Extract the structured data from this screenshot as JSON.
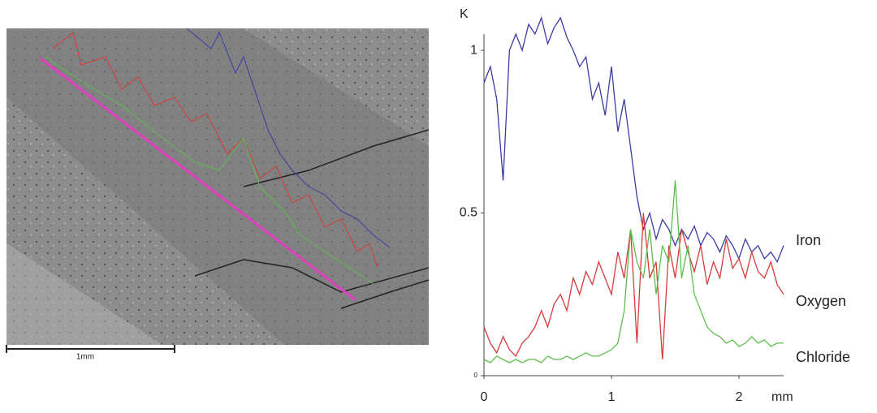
{
  "image": {
    "scale_label": "1mm"
  },
  "chart_data": {
    "type": "line",
    "y_label": "K",
    "x_label": "mm",
    "x": [
      0,
      0.05,
      0.1,
      0.15,
      0.2,
      0.25,
      0.3,
      0.35,
      0.4,
      0.45,
      0.5,
      0.55,
      0.6,
      0.65,
      0.7,
      0.75,
      0.8,
      0.85,
      0.9,
      0.95,
      1.0,
      1.05,
      1.1,
      1.15,
      1.2,
      1.25,
      1.3,
      1.35,
      1.4,
      1.45,
      1.5,
      1.55,
      1.6,
      1.65,
      1.7,
      1.75,
      1.8,
      1.85,
      1.9,
      1.95,
      2.0,
      2.05,
      2.1,
      2.15,
      2.2,
      2.25,
      2.3,
      2.35
    ],
    "series": [
      {
        "name": "Iron",
        "color": "#3b3ba6",
        "values": [
          0.9,
          0.95,
          0.85,
          0.6,
          1.0,
          1.05,
          1.0,
          1.08,
          1.05,
          1.1,
          1.02,
          1.07,
          1.1,
          1.04,
          1.0,
          0.95,
          0.98,
          0.85,
          0.9,
          0.8,
          0.95,
          0.75,
          0.85,
          0.7,
          0.55,
          0.45,
          0.5,
          0.42,
          0.48,
          0.45,
          0.4,
          0.45,
          0.42,
          0.46,
          0.4,
          0.44,
          0.42,
          0.38,
          0.43,
          0.4,
          0.36,
          0.42,
          0.38,
          0.4,
          0.36,
          0.38,
          0.35,
          0.4
        ]
      },
      {
        "name": "Oxygen",
        "color": "#d83a3a",
        "values": [
          0.15,
          0.1,
          0.07,
          0.12,
          0.08,
          0.06,
          0.1,
          0.12,
          0.15,
          0.2,
          0.15,
          0.22,
          0.25,
          0.2,
          0.3,
          0.25,
          0.32,
          0.28,
          0.35,
          0.3,
          0.25,
          0.38,
          0.3,
          0.45,
          0.1,
          0.5,
          0.3,
          0.35,
          0.05,
          0.4,
          0.3,
          0.45,
          0.38,
          0.32,
          0.4,
          0.28,
          0.35,
          0.3,
          0.42,
          0.33,
          0.36,
          0.3,
          0.38,
          0.32,
          0.3,
          0.35,
          0.28,
          0.25
        ]
      },
      {
        "name": "Chloride",
        "color": "#5cbf4c",
        "values": [
          0.05,
          0.04,
          0.06,
          0.05,
          0.04,
          0.05,
          0.04,
          0.05,
          0.05,
          0.04,
          0.06,
          0.05,
          0.05,
          0.06,
          0.05,
          0.06,
          0.07,
          0.06,
          0.06,
          0.07,
          0.08,
          0.1,
          0.2,
          0.45,
          0.35,
          0.3,
          0.45,
          0.25,
          0.4,
          0.35,
          0.6,
          0.3,
          0.4,
          0.25,
          0.2,
          0.15,
          0.13,
          0.12,
          0.1,
          0.11,
          0.09,
          0.1,
          0.12,
          0.1,
          0.11,
          0.09,
          0.1,
          0.1
        ]
      }
    ],
    "xlim": [
      0,
      2.35
    ],
    "xticks": [
      0,
      1,
      2
    ],
    "ylim": [
      0,
      1.05
    ],
    "yticks": [
      0,
      0.5,
      1
    ]
  }
}
